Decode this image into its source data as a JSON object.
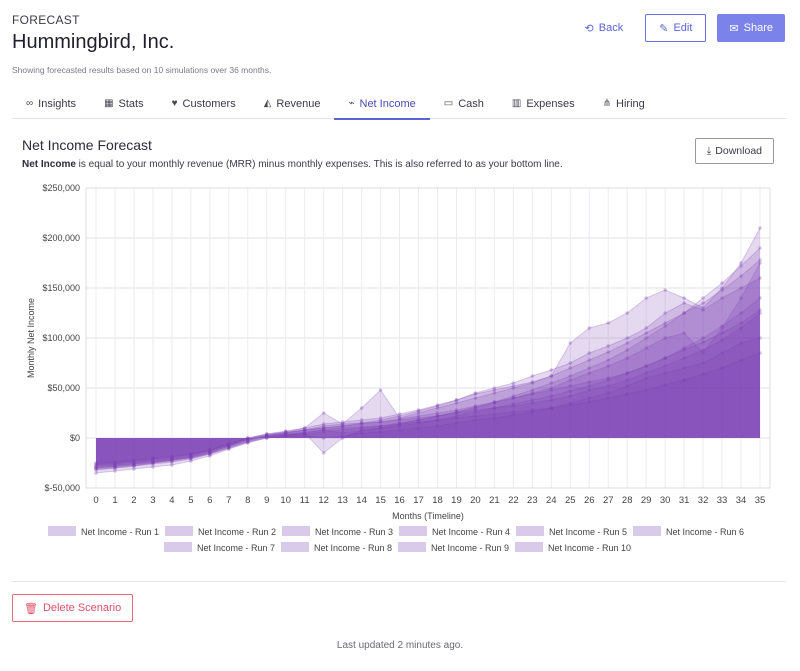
{
  "header": {
    "kicker": "FORECAST",
    "company": "Hummingbird, Inc.",
    "subtitle": "Showing forecasted results based on 10 simulations over 36 months.",
    "back_label": "Back",
    "edit_label": "Edit",
    "share_label": "Share"
  },
  "tabs": [
    {
      "label": "Insights",
      "icon": "∞",
      "icon_name": "infinity-icon",
      "active": false
    },
    {
      "label": "Stats",
      "icon": "▦",
      "icon_name": "table-icon",
      "active": false
    },
    {
      "label": "Customers",
      "icon": "♥",
      "icon_name": "heart-icon",
      "active": false
    },
    {
      "label": "Revenue",
      "icon": "◭",
      "icon_name": "area-chart-icon",
      "active": false
    },
    {
      "label": "Net Income",
      "icon": "⌁",
      "icon_name": "pulse-icon",
      "active": true
    },
    {
      "label": "Cash",
      "icon": "▭",
      "icon_name": "money-icon",
      "active": false
    },
    {
      "label": "Expenses",
      "icon": "▥",
      "icon_name": "bar-chart-icon",
      "active": false
    },
    {
      "label": "Hiring",
      "icon": "⋔",
      "icon_name": "org-chart-icon",
      "active": false
    }
  ],
  "section": {
    "title": "Net Income Forecast",
    "desc_bold": "Net Income",
    "desc_rest": " is equal to your monthly revenue (MRR) minus monthly expenses. This is also referred to as your bottom line.",
    "download_label": "Download"
  },
  "footer": {
    "delete_label": "Delete Scenario",
    "updated": "Last updated 2 minutes ago."
  },
  "chart_data": {
    "type": "area",
    "xlabel": "Months (Timeline)",
    "ylabel": "Monthly Net Income",
    "x": [
      0,
      1,
      2,
      3,
      4,
      5,
      6,
      7,
      8,
      9,
      10,
      11,
      12,
      13,
      14,
      15,
      16,
      17,
      18,
      19,
      20,
      21,
      22,
      23,
      24,
      25,
      26,
      27,
      28,
      29,
      30,
      31,
      32,
      33,
      34,
      35
    ],
    "ylim": [
      -50000,
      250000
    ],
    "yticks": [
      -50000,
      0,
      50000,
      100000,
      150000,
      200000,
      250000
    ],
    "ytick_labels": [
      "$-50,000",
      "$0",
      "$50,000",
      "$100,000",
      "$150,000",
      "$200,000",
      "$250,000"
    ],
    "grid": true,
    "legend_position": "bottom",
    "fill_color": "#7b3fb5",
    "series": [
      {
        "name": "Net Income - Run 1",
        "values": [
          -30000,
          -28000,
          -26000,
          -24000,
          -22000,
          -19000,
          -15000,
          -9000,
          -3000,
          2000,
          4000,
          3000,
          0,
          2000,
          5000,
          6000,
          8000,
          10000,
          12000,
          15000,
          18000,
          20000,
          23000,
          26000,
          30000,
          35000,
          40000,
          45000,
          52000,
          60000,
          65000,
          70000,
          75000,
          85000,
          95000,
          100000
        ]
      },
      {
        "name": "Net Income - Run 2",
        "values": [
          -28000,
          -27000,
          -25000,
          -23000,
          -21000,
          -18000,
          -13000,
          -7000,
          -1000,
          3000,
          5000,
          8000,
          10000,
          12000,
          15000,
          18000,
          22000,
          27000,
          32000,
          38000,
          45000,
          50000,
          55000,
          62000,
          68000,
          75000,
          85000,
          92000,
          100000,
          110000,
          125000,
          135000,
          128000,
          140000,
          150000,
          160000
        ]
      },
      {
        "name": "Net Income - Run 3",
        "values": [
          -32000,
          -30000,
          -28000,
          -25000,
          -22000,
          -20000,
          -16000,
          -10000,
          -4000,
          1000,
          3000,
          5000,
          8000,
          5000,
          7000,
          10000,
          14000,
          18000,
          22000,
          26000,
          30000,
          35000,
          40000,
          45000,
          50000,
          58000,
          65000,
          72000,
          80000,
          90000,
          100000,
          105000,
          85000,
          110000,
          140000,
          175000
        ]
      },
      {
        "name": "Net Income - Run 4",
        "values": [
          -25000,
          -24000,
          -22000,
          -20000,
          -18000,
          -16000,
          -12000,
          -6000,
          0,
          4000,
          6000,
          8000,
          10000,
          12000,
          14000,
          16000,
          18000,
          20000,
          22000,
          25000,
          28000,
          30000,
          32000,
          35000,
          38000,
          42000,
          48000,
          52000,
          58000,
          65000,
          72000,
          80000,
          88000,
          98000,
          110000,
          125000
        ]
      },
      {
        "name": "Net Income - Run 5",
        "values": [
          -30000,
          -29000,
          -27000,
          -25000,
          -23000,
          -20000,
          -15000,
          -8000,
          -2000,
          2000,
          4000,
          6000,
          8000,
          10000,
          11000,
          12000,
          14000,
          16000,
          18000,
          20000,
          22000,
          24000,
          26000,
          28000,
          30000,
          33000,
          36000,
          40000,
          44000,
          48000,
          53000,
          58000,
          64000,
          70000,
          78000,
          85000
        ]
      },
      {
        "name": "Net Income - Run 6",
        "values": [
          -35000,
          -33000,
          -31000,
          -29000,
          -27000,
          -23000,
          -18000,
          -11000,
          -5000,
          0,
          2000,
          4000,
          6000,
          8000,
          10000,
          12000,
          15000,
          18000,
          22000,
          26000,
          31000,
          36000,
          42000,
          48000,
          55000,
          62000,
          70000,
          78000,
          88000,
          100000,
          112000,
          125000,
          140000,
          155000,
          172000,
          190000
        ]
      },
      {
        "name": "Net Income - Run 7",
        "values": [
          -27000,
          -26000,
          -24000,
          -22000,
          -20000,
          -17000,
          -13000,
          -7000,
          -1000,
          3000,
          6000,
          10000,
          14000,
          16000,
          18000,
          20000,
          24000,
          28000,
          33000,
          38000,
          44000,
          48000,
          52000,
          56000,
          62000,
          95000,
          110000,
          115000,
          125000,
          140000,
          148000,
          140000,
          130000,
          150000,
          175000,
          210000
        ]
      },
      {
        "name": "Net Income - Run 8",
        "values": [
          -29000,
          -28000,
          -26000,
          -24000,
          -22000,
          -19000,
          -14000,
          -8000,
          -2000,
          2000,
          5000,
          8000,
          12000,
          14000,
          15000,
          16000,
          19000,
          22000,
          25000,
          28000,
          32000,
          36000,
          40000,
          44000,
          48000,
          52000,
          56000,
          60000,
          65000,
          72000,
          80000,
          90000,
          100000,
          112000,
          125000,
          140000
        ]
      },
      {
        "name": "Net Income - Run 9",
        "values": [
          -31000,
          -30000,
          -28000,
          -26000,
          -24000,
          -21000,
          -16000,
          -10000,
          -4000,
          0,
          3000,
          5000,
          -15000,
          0,
          8000,
          10000,
          12000,
          15000,
          18000,
          22000,
          26000,
          30000,
          34000,
          38000,
          42000,
          47000,
          52000,
          58000,
          65000,
          72000,
          80000,
          88000,
          96000,
          105000,
          115000,
          128000
        ]
      },
      {
        "name": "Net Income - Run 10",
        "values": [
          -26000,
          -25000,
          -23000,
          -21000,
          -19000,
          -16000,
          -12000,
          -6000,
          0,
          4000,
          7000,
          10000,
          25000,
          14000,
          30000,
          48000,
          20000,
          25000,
          30000,
          35000,
          40000,
          45000,
          50000,
          55000,
          62000,
          70000,
          78000,
          86000,
          95000,
          105000,
          115000,
          125000,
          135000,
          148000,
          162000,
          178000
        ]
      }
    ]
  }
}
